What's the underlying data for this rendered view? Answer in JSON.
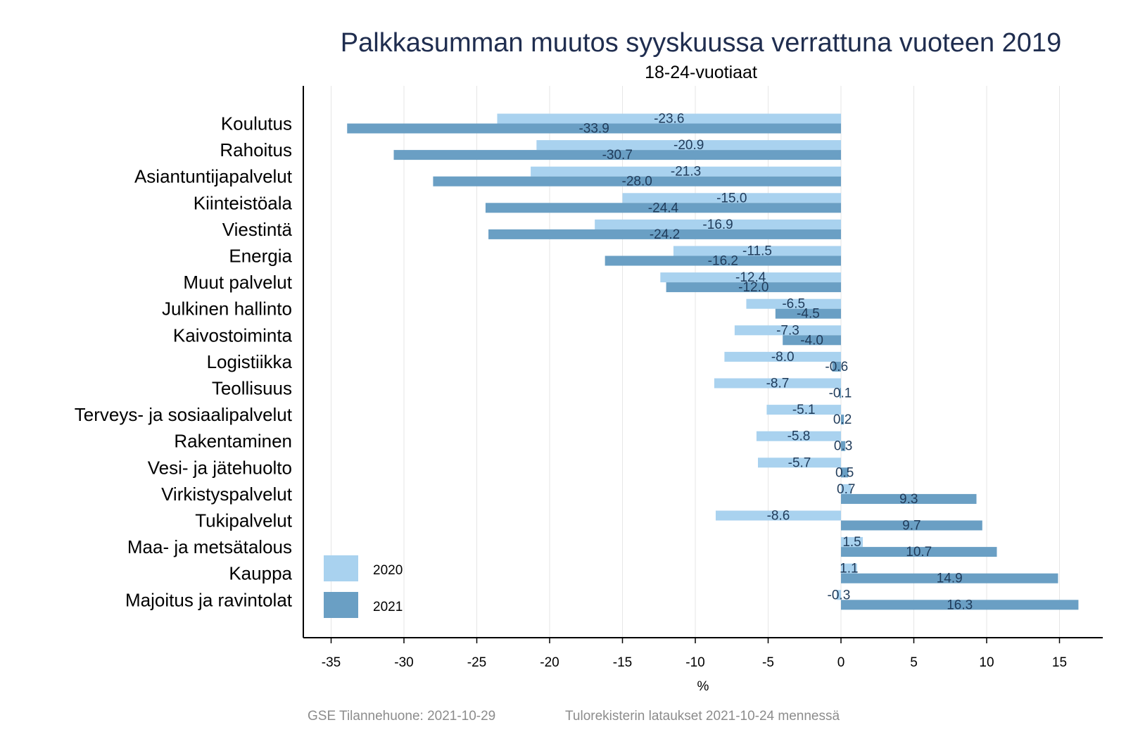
{
  "chart_data": {
    "type": "bar",
    "orientation": "horizontal",
    "title": "Palkkasumman muutos syyskuussa verrattuna vuoteen 2019",
    "subtitle": "18-24-vuotiaat",
    "xlabel": "%",
    "xlim": [
      -37,
      18
    ],
    "xticks": [
      -35,
      -30,
      -25,
      -20,
      -15,
      -10,
      -5,
      0,
      5,
      10,
      15
    ],
    "grid": "vertical",
    "legend_position": "bottom-left",
    "categories": [
      "Koulutus",
      "Rahoitus",
      "Asiantuntijapalvelut",
      "Kiinteistöala",
      "Viestintä",
      "Energia",
      "Muut palvelut",
      "Julkinen hallinto",
      "Kaivostoiminta",
      "Logistiikka",
      "Teollisuus",
      "Terveys- ja sosiaalipalvelut",
      "Rakentaminen",
      "Vesi- ja jätehuolto",
      "Virkistyspalvelut",
      "Tukipalvelut",
      "Maa- ja metsätalous",
      "Kauppa",
      "Majoitus ja ravintolat"
    ],
    "series": [
      {
        "name": "2020",
        "color": "#a9d2ef",
        "values": [
          -23.6,
          -20.9,
          -21.3,
          -15.0,
          -16.9,
          -11.5,
          -12.4,
          -6.5,
          -7.3,
          -8.0,
          -8.7,
          -5.1,
          -5.8,
          -5.7,
          0.7,
          -8.6,
          1.5,
          1.1,
          -0.3
        ],
        "labels": [
          "-23.6",
          "-20.9",
          "-21.3",
          "-15.0",
          "-16.9",
          "-11.5",
          "-12.4",
          "-6.5",
          "-7.3",
          "-8.0",
          "-8.7",
          "-5.1",
          "-5.8",
          "-5.7",
          "0.7",
          "-8.6",
          "1.5",
          "1.1",
          "-0.3"
        ]
      },
      {
        "name": "2021",
        "color": "#6a9fc4",
        "values": [
          -33.9,
          -30.7,
          -28.0,
          -24.4,
          -24.2,
          -16.2,
          -12.0,
          -4.5,
          -4.0,
          -0.6,
          -0.1,
          0.2,
          0.3,
          0.5,
          9.3,
          9.7,
          10.7,
          14.9,
          16.3
        ],
        "labels": [
          "-33.9",
          "-30.7",
          "-28.0",
          "-24.4",
          "-24.2",
          "-16.2",
          "-12.0",
          "-4.5",
          "-4.0",
          "-0.6",
          "-0.1",
          "0.2",
          "0.3",
          "0.5",
          "9.3",
          "9.7",
          "10.7",
          "14.9",
          "16.3"
        ]
      }
    ],
    "caption_left": "GSE Tilannehuone: 2021-10-29",
    "caption_right": "Tulorekisterin lataukset 2021-10-24 mennessä"
  }
}
